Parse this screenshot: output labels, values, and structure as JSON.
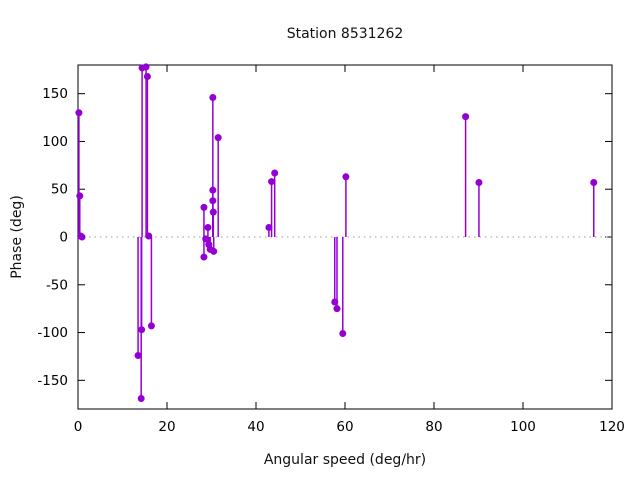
{
  "title": "Station 8531262",
  "colors": {
    "accent": "#9400D3",
    "axis": "#000000",
    "text": "#000000",
    "zero_line": "#9e9e9e",
    "background": "#ffffff"
  },
  "chart_data": {
    "type": "scatter",
    "style": "stem-impulses-with-points",
    "title": "Station 8531262",
    "xlabel": "Angular speed (deg/hr)",
    "ylabel": "Phase (deg)",
    "xlim": [
      0,
      120
    ],
    "ylim": [
      -180,
      180
    ],
    "xticks": [
      0,
      20,
      40,
      60,
      80,
      100,
      120
    ],
    "yticks": [
      -150,
      -100,
      -50,
      0,
      50,
      100,
      150
    ],
    "grid": false,
    "zero_line_dotted": true,
    "legend_position": "none",
    "series_name": "phase",
    "points": [
      [
        0.2,
        130
      ],
      [
        0.4,
        43
      ],
      [
        0.6,
        1
      ],
      [
        0.9,
        0
      ],
      [
        13.5,
        -124
      ],
      [
        14.2,
        -169
      ],
      [
        14.3,
        -97
      ],
      [
        14.4,
        177
      ],
      [
        15.3,
        178
      ],
      [
        15.6,
        168
      ],
      [
        15.9,
        1
      ],
      [
        16.5,
        -93
      ],
      [
        28.3,
        31
      ],
      [
        28.3,
        -21
      ],
      [
        28.7,
        -2
      ],
      [
        29.2,
        10
      ],
      [
        29.4,
        -8
      ],
      [
        29.7,
        -13
      ],
      [
        30.3,
        146
      ],
      [
        30.3,
        49
      ],
      [
        30.3,
        38
      ],
      [
        30.4,
        26
      ],
      [
        30.5,
        -15
      ],
      [
        31.5,
        104
      ],
      [
        42.9,
        10
      ],
      [
        43.5,
        58
      ],
      [
        44.2,
        67
      ],
      [
        57.7,
        -68
      ],
      [
        58.2,
        -75
      ],
      [
        59.5,
        -101
      ],
      [
        60.2,
        63
      ],
      [
        87.1,
        126
      ],
      [
        90.1,
        57
      ],
      [
        115.9,
        57
      ]
    ]
  }
}
